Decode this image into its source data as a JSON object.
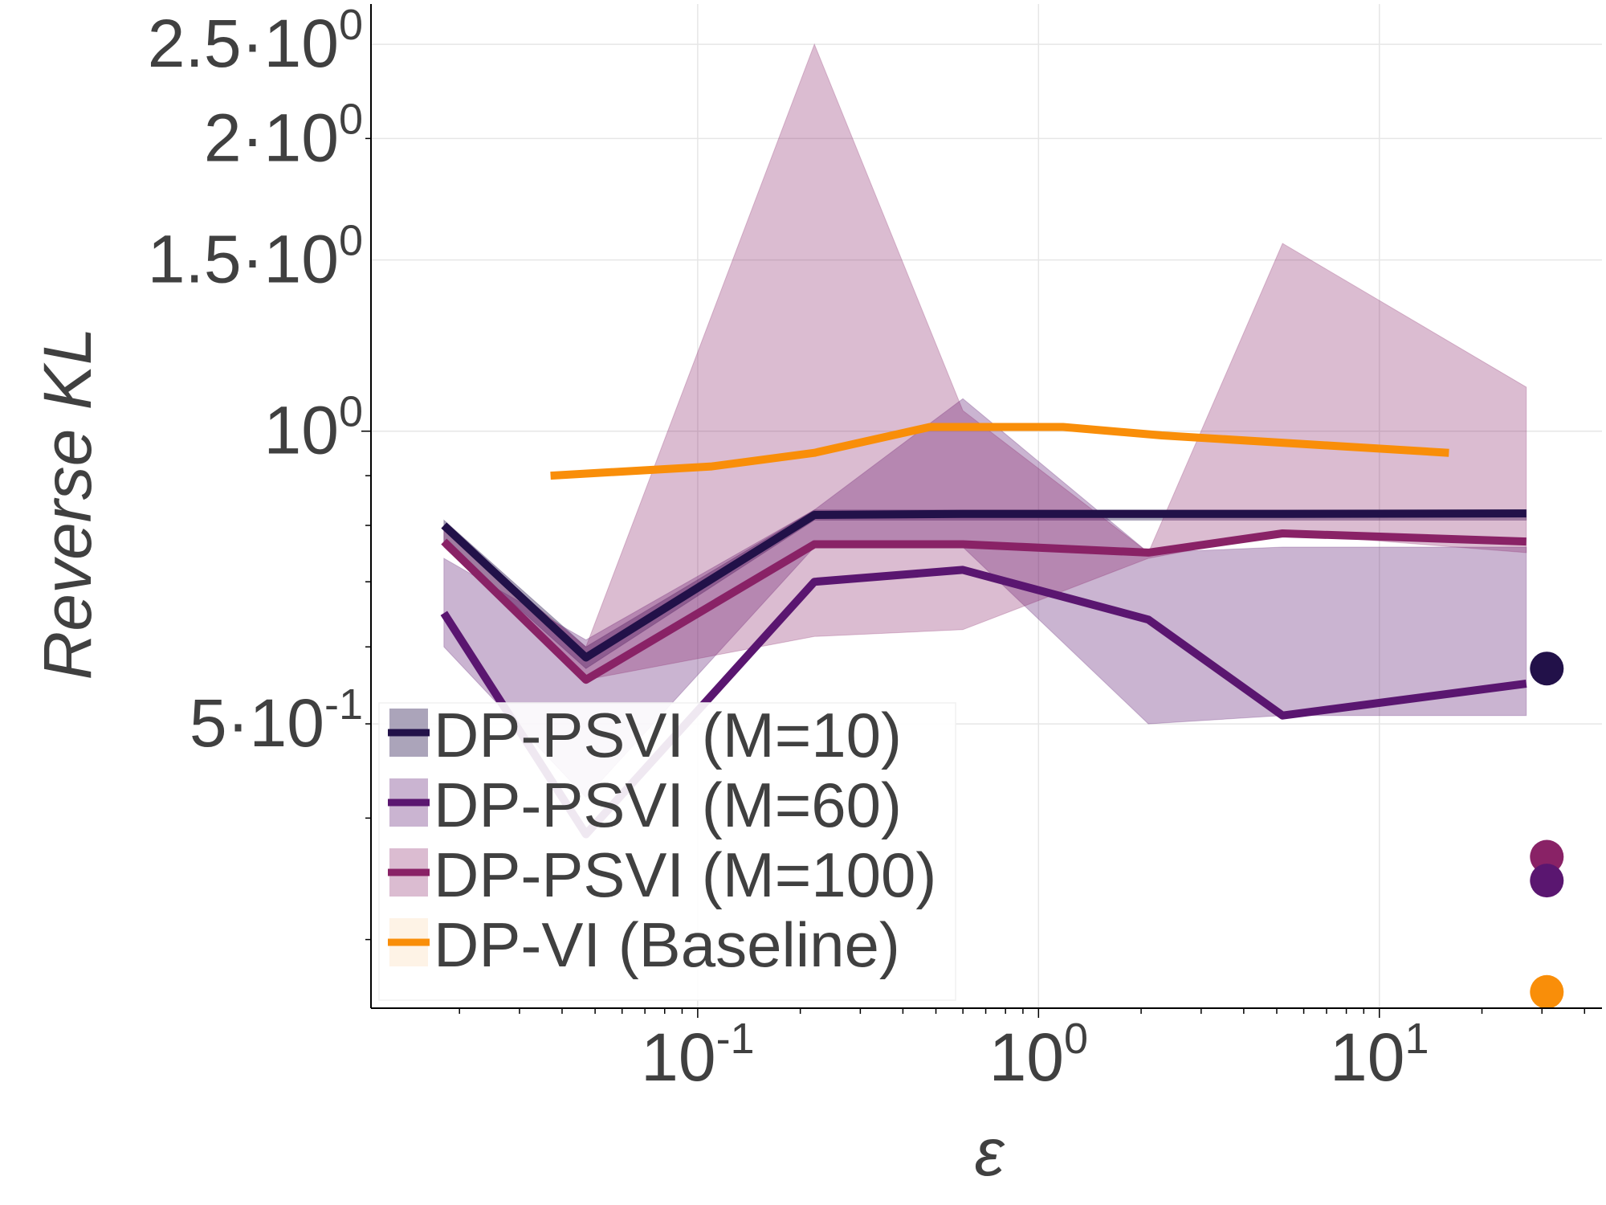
{
  "chart_data": {
    "type": "line",
    "title": "",
    "xlabel": "ε",
    "ylabel": "Reverse KL",
    "x_scale": "log",
    "y_scale": "log",
    "xlim": [
      0.011,
      45
    ],
    "ylim": [
      0.255,
      2.75
    ],
    "grid": true,
    "legend_position": "bottom-left",
    "x_ticks": [
      {
        "value": 0.1,
        "mantissa": "",
        "base": "10",
        "exp": "-1"
      },
      {
        "value": 1,
        "mantissa": "",
        "base": "10",
        "exp": "0"
      },
      {
        "value": 10,
        "mantissa": "",
        "base": "10",
        "exp": "1"
      }
    ],
    "y_ticks": [
      {
        "value": 0.5,
        "mantissa": "5·",
        "base": "10",
        "exp": "-1"
      },
      {
        "value": 1.0,
        "mantissa": "",
        "base": "10",
        "exp": "0"
      },
      {
        "value": 1.5,
        "mantissa": "1.5·",
        "base": "10",
        "exp": "0"
      },
      {
        "value": 2.0,
        "mantissa": "2·",
        "base": "10",
        "exp": "0"
      },
      {
        "value": 2.5,
        "mantissa": "2.5·",
        "base": "10",
        "exp": "0"
      }
    ],
    "series": [
      {
        "name": "DP-PSVI (M=10)",
        "color": "#221149",
        "band_opacity": 0.38,
        "x": [
          0.018,
          0.047,
          0.22,
          0.6,
          2.1,
          5.2,
          27
        ],
        "y": [
          0.8,
          0.585,
          0.82,
          0.822,
          0.822,
          0.822,
          0.823
        ],
        "y_low": [
          0.77,
          0.57,
          0.81,
          0.81,
          0.81,
          0.81,
          0.81
        ],
        "y_high": [
          0.81,
          0.6,
          0.83,
          0.83,
          0.83,
          0.83,
          0.83
        ]
      },
      {
        "name": "DP-PSVI (M=60)",
        "color": "#5a1670",
        "band_opacity": 0.32,
        "x": [
          0.018,
          0.047,
          0.22,
          0.6,
          2.1,
          5.2,
          27
        ],
        "y": [
          0.65,
          0.385,
          0.7,
          0.72,
          0.64,
          0.51,
          0.55
        ],
        "y_low": [
          0.6,
          0.42,
          0.76,
          0.76,
          0.5,
          0.51,
          0.51
        ],
        "y_high": [
          0.74,
          0.61,
          0.83,
          1.08,
          0.75,
          0.76,
          0.76
        ]
      },
      {
        "name": "DP-PSVI (M=100)",
        "color": "#892266",
        "band_opacity": 0.3,
        "x": [
          0.018,
          0.047,
          0.22,
          0.6,
          2.1,
          5.2,
          27
        ],
        "y": [
          0.77,
          0.555,
          0.765,
          0.765,
          0.75,
          0.785,
          0.77
        ],
        "y_low": [
          0.76,
          0.555,
          0.615,
          0.625,
          0.74,
          0.785,
          0.75
        ],
        "y_high": [
          0.79,
          0.6,
          2.5,
          1.05,
          0.75,
          1.56,
          1.11
        ]
      },
      {
        "name": "DP-VI (Baseline)",
        "color": "#f98e09",
        "band_opacity": 0.1,
        "x": [
          0.037,
          0.11,
          0.22,
          0.48,
          1.18,
          2.3,
          16
        ],
        "y": [
          0.9,
          0.92,
          0.95,
          1.01,
          1.01,
          0.99,
          0.95
        ]
      }
    ],
    "points": [
      {
        "name": "DP-PSVI (M=10)",
        "color": "#221149",
        "x": 31,
        "y": 0.57
      },
      {
        "name": "DP-PSVI (M=100)",
        "color": "#892266",
        "x": 31,
        "y": 0.365
      },
      {
        "name": "DP-PSVI (M=60)",
        "color": "#5a1670",
        "x": 31,
        "y": 0.345
      },
      {
        "name": "DP-VI (Baseline)",
        "color": "#f98e09",
        "x": 31,
        "y": 0.265
      }
    ]
  }
}
